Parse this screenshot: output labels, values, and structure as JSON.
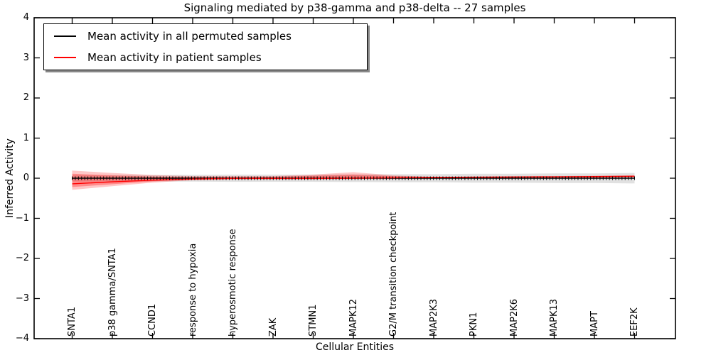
{
  "title": "Signaling mediated by p38-gamma and p38-delta -- 27 samples",
  "axes": {
    "xlabel": "Cellular Entities",
    "ylabel": "Inferred Activity",
    "ytick_labels": [
      "4",
      "3",
      "2",
      "1",
      "0",
      "−1",
      "−2",
      "−3",
      "−4"
    ],
    "ylim": [
      -4,
      4
    ],
    "grid": false
  },
  "legend": {
    "position": "upper left",
    "items": [
      {
        "label": "Mean activity in all permuted samples",
        "color": "#000000"
      },
      {
        "label": "Mean activity in patient samples",
        "color": "#ff0000"
      }
    ]
  },
  "chart_data": {
    "type": "line",
    "title": "Signaling mediated by p38-gamma and p38-delta -- 27 samples",
    "xlabel": "Cellular Entities",
    "ylabel": "Inferred Activity",
    "ylim": [
      -4,
      4
    ],
    "legend_position": "upper left",
    "categories": [
      "SNTA1",
      "p38 gamma/SNTA1",
      "CCND1",
      "response to hypoxia",
      "hyperosmotic response",
      "ZAK",
      "STMN1",
      "MAPK12",
      "G2/M transition checkpoint",
      "MAP2K3",
      "PKN1",
      "MAP2K6",
      "MAPK13",
      "MAPT",
      "EEF2K"
    ],
    "series": [
      {
        "name": "Mean activity in all permuted samples",
        "color": "#000000",
        "values": [
          0.0,
          0.0,
          0.0,
          0.0,
          0.0,
          0.0,
          0.0,
          0.0,
          0.0,
          0.0,
          0.0,
          0.0,
          0.0,
          0.0,
          0.0
        ]
      },
      {
        "name": "Mean activity in patient samples",
        "color": "#ff0000",
        "values": [
          -0.14,
          -0.09,
          -0.05,
          -0.02,
          -0.005,
          -0.005,
          -0.005,
          0.0,
          0.01,
          0.02,
          0.025,
          0.03,
          0.035,
          0.04,
          0.05
        ]
      }
    ],
    "bands": [
      {
        "name": "permuted-samples-range",
        "color": "rgba(90,90,90,0.18)",
        "upper": [
          0.08,
          0.08,
          0.08,
          0.085,
          0.09,
          0.09,
          0.09,
          0.095,
          0.1,
          0.1,
          0.11,
          0.11,
          0.12,
          0.12,
          0.13
        ],
        "lower": [
          -0.08,
          -0.08,
          -0.08,
          -0.085,
          -0.09,
          -0.09,
          -0.09,
          -0.095,
          -0.1,
          -0.1,
          -0.11,
          -0.11,
          -0.12,
          -0.12,
          -0.13
        ]
      },
      {
        "name": "patient-samples-range-outer",
        "color": "rgba(255,0,0,0.22)",
        "upper": [
          0.19,
          0.13,
          0.08,
          0.05,
          0.05,
          0.05,
          0.09,
          0.15,
          0.07,
          0.03,
          0.04,
          0.05,
          0.05,
          0.06,
          0.07
        ],
        "lower": [
          -0.29,
          -0.2,
          -0.11,
          -0.05,
          -0.03,
          -0.03,
          -0.03,
          -0.02,
          -0.02,
          -0.01,
          0.0,
          0.0,
          0.01,
          0.01,
          0.02
        ]
      },
      {
        "name": "patient-samples-range-inner",
        "color": "rgba(255,0,0,0.30)",
        "upper": [
          0.11,
          0.07,
          0.04,
          0.03,
          0.03,
          0.035,
          0.06,
          0.09,
          0.05,
          0.03,
          0.03,
          0.035,
          0.04,
          0.045,
          0.055
        ],
        "lower": [
          -0.22,
          -0.15,
          -0.08,
          -0.035,
          -0.02,
          -0.02,
          -0.02,
          -0.01,
          -0.005,
          0.0,
          0.005,
          0.01,
          0.015,
          0.02,
          0.03
        ]
      }
    ],
    "marker_count": 180
  }
}
